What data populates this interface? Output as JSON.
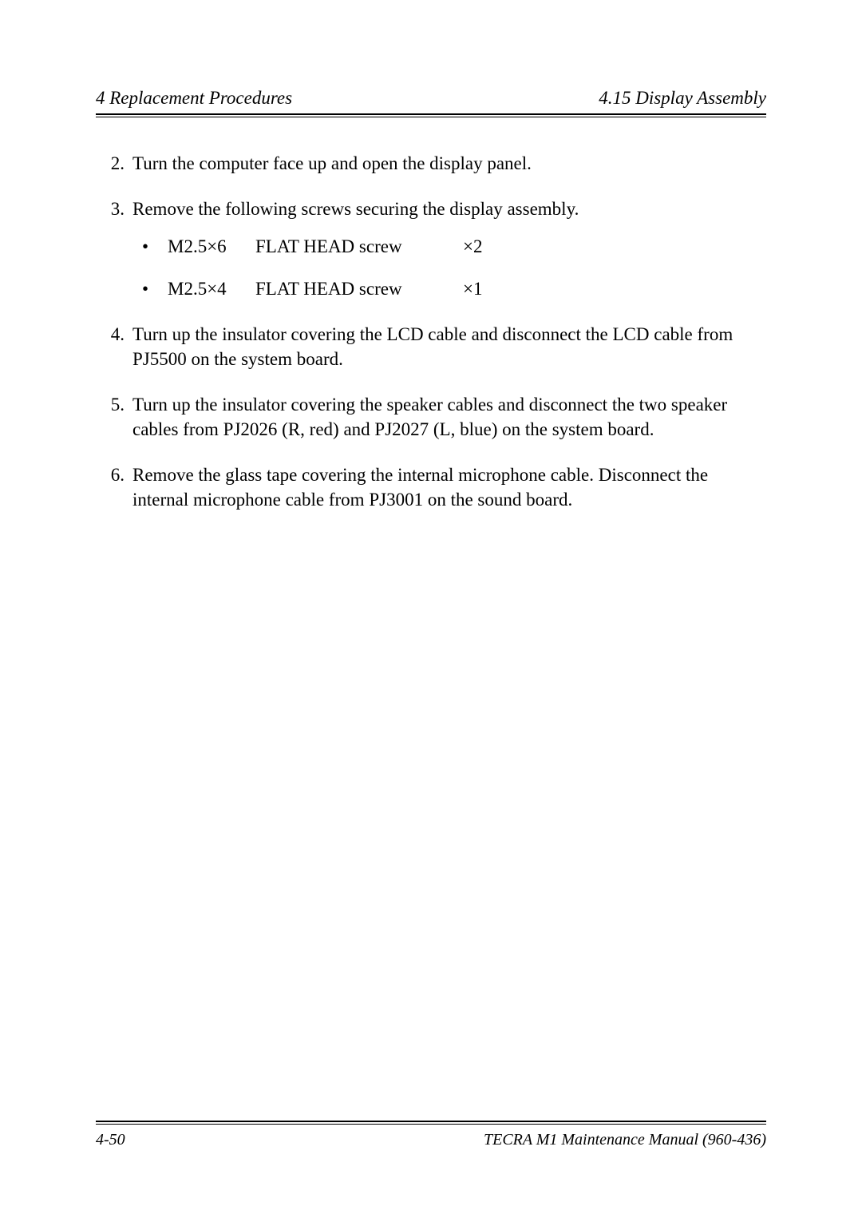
{
  "header": {
    "left": "4 Replacement Procedures",
    "right": "4.15  Display Assembly"
  },
  "steps": [
    {
      "n": "2.",
      "text": "Turn the computer face up and open the display panel."
    },
    {
      "n": "3.",
      "text": "Remove the following screws securing the display assembly.",
      "screws": [
        {
          "size": "M2.5×6",
          "type": "FLAT HEAD screw",
          "qty": "×2"
        },
        {
          "size": "M2.5×4",
          "type": "FLAT HEAD screw",
          "qty": "×1"
        }
      ]
    },
    {
      "n": "4.",
      "text": "Turn up the insulator covering the LCD cable and disconnect the LCD cable from PJ5500 on the system board."
    },
    {
      "n": "5.",
      "text": "Turn up the insulator covering the speaker cables and disconnect the two speaker cables from PJ2026 (R, red) and PJ2027 (L, blue) on the system board."
    },
    {
      "n": "6.",
      "text": "Remove the glass tape covering the internal microphone cable. Disconnect the internal microphone cable from PJ3001 on the sound board."
    }
  ],
  "footer": {
    "left": "4-50",
    "right": "TECRA M1 Maintenance Manual (960-436)"
  }
}
